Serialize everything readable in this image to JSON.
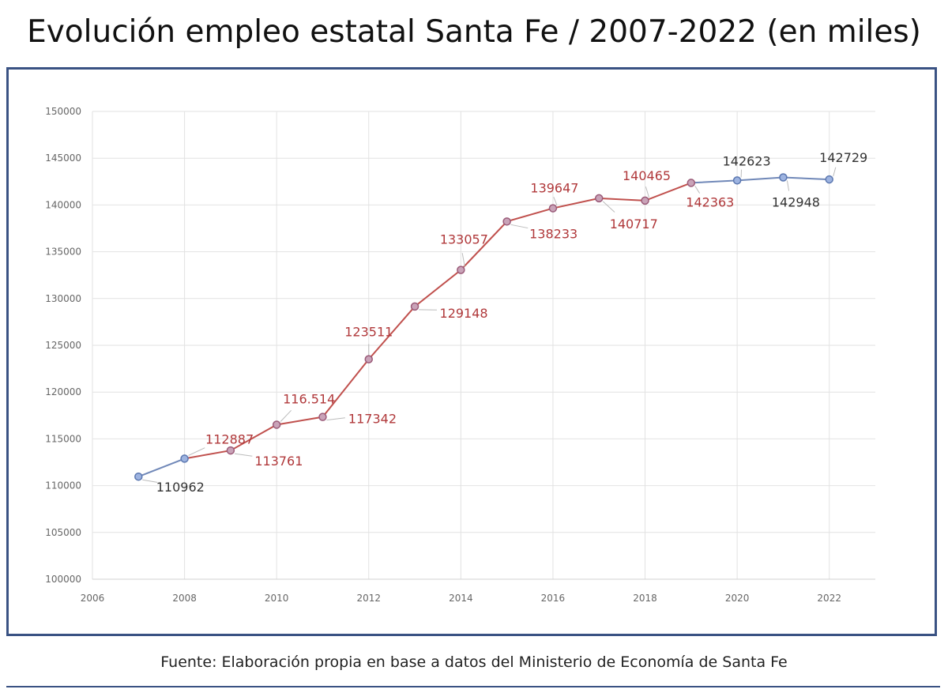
{
  "chart_data": {
    "type": "line",
    "title": "Evolución empleo estatal Santa Fe / 2007-2022 (en miles)",
    "source": "Fuente: Elaboración propia en base a datos del Ministerio de Economía de Santa Fe",
    "xlabel": "",
    "ylabel": "",
    "xlim": [
      2006,
      2023
    ],
    "ylim": [
      100000,
      150000
    ],
    "x_ticks": [
      "2006",
      "2008",
      "2010",
      "2012",
      "2014",
      "2016",
      "2018",
      "2020",
      "2022"
    ],
    "y_ticks": [
      "100000",
      "105000",
      "110000",
      "115000",
      "120000",
      "125000",
      "130000",
      "135000",
      "140000",
      "145000",
      "150000"
    ],
    "grid": true,
    "x": [
      2007,
      2008,
      2009,
      2010,
      2011,
      2012,
      2013,
      2014,
      2015,
      2016,
      2017,
      2018,
      2019,
      2020,
      2021,
      2022
    ],
    "values": [
      110962,
      112887,
      113761,
      116514,
      117342,
      123511,
      129148,
      133057,
      138233,
      139647,
      140717,
      140465,
      142363,
      142623,
      142948,
      142729
    ],
    "data_labels": [
      "110962",
      "112887",
      "113761",
      "116.514",
      "117342",
      "123511",
      "129148",
      "133057",
      "138233",
      "139647",
      "140717",
      "140465",
      "142363",
      "142623",
      "142948",
      "142729"
    ],
    "series": [
      {
        "name": "blue",
        "color": "#7088b8",
        "x": [
          2007,
          2008
        ],
        "values": [
          110962,
          112887
        ]
      },
      {
        "name": "red",
        "color": "#c0504d",
        "x": [
          2008,
          2009,
          2010,
          2011,
          2012,
          2013,
          2014,
          2015,
          2016,
          2017,
          2018,
          2019
        ],
        "values": [
          112887,
          113761,
          116514,
          117342,
          123511,
          129148,
          133057,
          138233,
          139647,
          140717,
          140465,
          142363
        ]
      },
      {
        "name": "blue",
        "color": "#7088b8",
        "x": [
          2019,
          2020,
          2021,
          2022
        ],
        "values": [
          142363,
          142623,
          142948,
          142729
        ]
      }
    ],
    "label_colors": {
      "red": "#b0383a",
      "gray": "#333333"
    }
  }
}
